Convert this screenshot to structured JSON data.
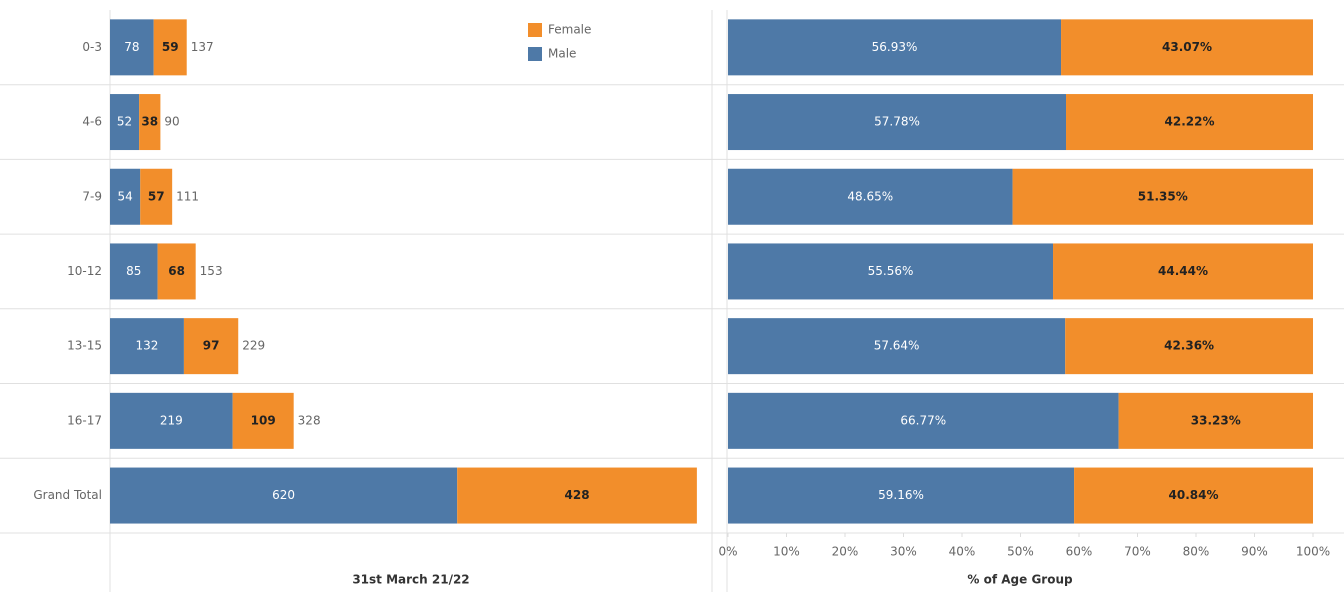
{
  "chart_data": [
    {
      "type": "stacked-bar-horizontal",
      "x_label": "31st March 21/22",
      "categories": [
        "0-3",
        "4-6",
        "7-9",
        "10-12",
        "13-15",
        "16-17",
        "Grand Total"
      ],
      "series": [
        {
          "name": "Male",
          "color": "#4e79a7",
          "values": [
            78,
            52,
            54,
            85,
            132,
            219,
            620
          ]
        },
        {
          "name": "Female",
          "color": "#f28e2b",
          "values": [
            59,
            38,
            57,
            68,
            97,
            109,
            428
          ]
        }
      ],
      "totals": [
        137,
        90,
        111,
        153,
        229,
        328,
        null
      ],
      "xlim": [
        0,
        1075
      ],
      "legend": "top-right"
    },
    {
      "type": "stacked-bar-horizontal",
      "x_label": "% of Age Group",
      "series": [
        {
          "name": "Male",
          "color": "#4e79a7",
          "values": [
            56.93,
            57.78,
            48.65,
            55.56,
            57.64,
            66.77,
            59.16
          ],
          "value_labels": [
            "56.93%",
            "57.78%",
            "48.65%",
            "55.56%",
            "57.64%",
            "66.77%",
            "59.16%"
          ]
        },
        {
          "name": "Female",
          "color": "#f28e2b",
          "values": [
            43.07,
            42.22,
            51.35,
            44.44,
            42.36,
            33.23,
            40.84
          ],
          "value_labels": [
            "43.07%",
            "42.22%",
            "51.35%",
            "44.44%",
            "42.36%",
            "33.23%",
            "40.84%"
          ]
        }
      ],
      "xlim": [
        0,
        100
      ],
      "xticks": [
        {
          "value": 0,
          "label": "0%"
        },
        {
          "value": 10,
          "label": "10%"
        },
        {
          "value": 20,
          "label": "20%"
        },
        {
          "value": 30,
          "label": "30%"
        },
        {
          "value": 40,
          "label": "40%"
        },
        {
          "value": 50,
          "label": "50%"
        },
        {
          "value": 60,
          "label": "60%"
        },
        {
          "value": 70,
          "label": "70%"
        },
        {
          "value": 80,
          "label": "80%"
        },
        {
          "value": 90,
          "label": "90%"
        },
        {
          "value": 100,
          "label": "100%"
        }
      ]
    }
  ]
}
